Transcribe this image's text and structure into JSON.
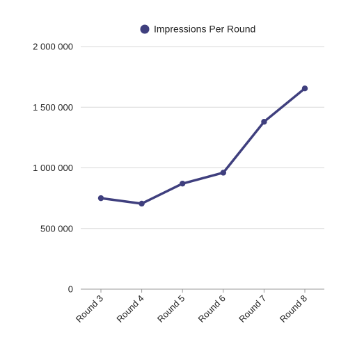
{
  "chart_data": {
    "type": "line",
    "categories": [
      "Round 3",
      "Round 4",
      "Round 5",
      "Round 6",
      "Round 7",
      "Round 8"
    ],
    "series": [
      {
        "name": "Impressions Per Round",
        "values": [
          750000,
          705000,
          870000,
          960000,
          1380000,
          1655000
        ],
        "color": "#3f3f7e"
      }
    ],
    "ylim": [
      0,
      2000000
    ],
    "yticks": [
      0,
      500000,
      1000000,
      1500000,
      2000000
    ],
    "ytick_labels": [
      "0",
      "500 000",
      "1 000 000",
      "1 500 000",
      "2 000 000"
    ],
    "legend_position": "top-center",
    "grid": "horizontal",
    "gridline_color": "#d9d9d9"
  }
}
